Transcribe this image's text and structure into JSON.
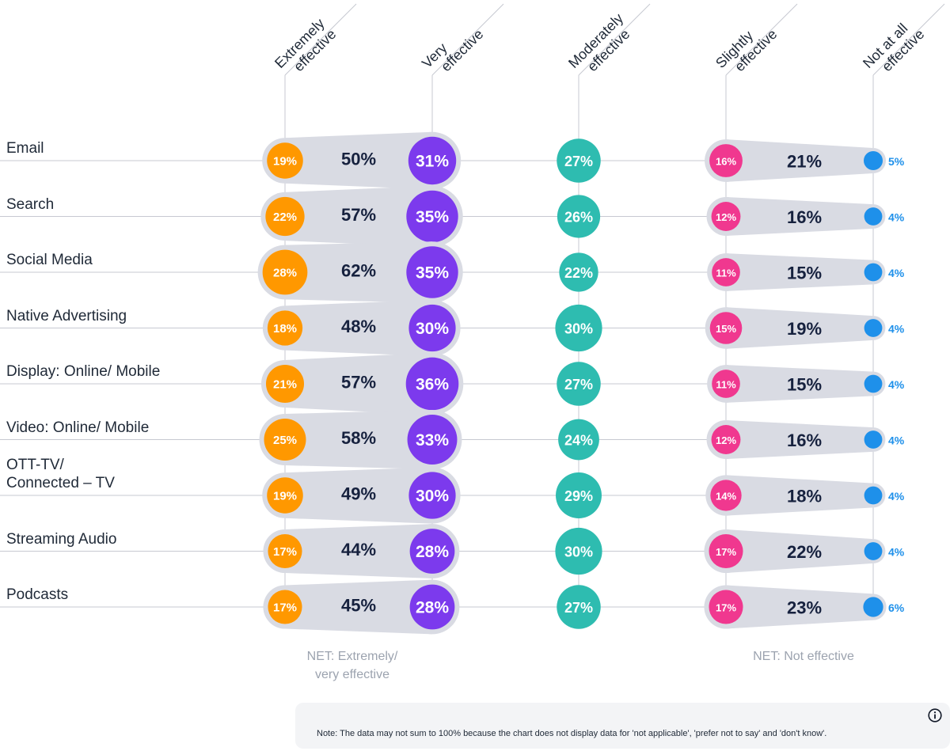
{
  "chart_data": {
    "type": "dot-plot",
    "columns": [
      {
        "key": "extremely",
        "header_lines": [
          "Extremely",
          "effective"
        ],
        "color": "#ff9800"
      },
      {
        "key": "very",
        "header_lines": [
          "Very",
          "effective"
        ],
        "color": "#7c3aed"
      },
      {
        "key": "moderately",
        "header_lines": [
          "Moderately",
          "effective"
        ],
        "color": "#2ebcb0"
      },
      {
        "key": "slightly",
        "header_lines": [
          "Slightly",
          "effective"
        ],
        "color": "#f0388f"
      },
      {
        "key": "not_at_all",
        "header_lines": [
          "Not at all",
          "effective"
        ],
        "color": "#1e90ea"
      }
    ],
    "rows": [
      {
        "label": "Email",
        "extremely": "19%",
        "very": "31%",
        "net_effective": "50%",
        "moderately": "27%",
        "slightly": "16%",
        "net_not": "21%",
        "not_at_all": "5%"
      },
      {
        "label": "Search",
        "extremely": "22%",
        "very": "35%",
        "net_effective": "57%",
        "moderately": "26%",
        "slightly": "12%",
        "net_not": "16%",
        "not_at_all": "4%"
      },
      {
        "label": "Social Media",
        "extremely": "28%",
        "very": "35%",
        "net_effective": "62%",
        "moderately": "22%",
        "slightly": "11%",
        "net_not": "15%",
        "not_at_all": "4%"
      },
      {
        "label": "Native Advertising",
        "extremely": "18%",
        "very": "30%",
        "net_effective": "48%",
        "moderately": "30%",
        "slightly": "15%",
        "net_not": "19%",
        "not_at_all": "4%"
      },
      {
        "label": "Display: Online/ Mobile",
        "extremely": "21%",
        "very": "36%",
        "net_effective": "57%",
        "moderately": "27%",
        "slightly": "11%",
        "net_not": "15%",
        "not_at_all": "4%"
      },
      {
        "label": "Video: Online/ Mobile",
        "extremely": "25%",
        "very": "33%",
        "net_effective": "58%",
        "moderately": "24%",
        "slightly": "12%",
        "net_not": "16%",
        "not_at_all": "4%"
      },
      {
        "label": "OTT-TV/\nConnected – TV",
        "extremely": "19%",
        "very": "30%",
        "net_effective": "49%",
        "moderately": "29%",
        "slightly": "14%",
        "net_not": "18%",
        "not_at_all": "4%"
      },
      {
        "label": "Streaming Audio",
        "extremely": "17%",
        "very": "28%",
        "net_effective": "44%",
        "moderately": "30%",
        "slightly": "17%",
        "net_not": "22%",
        "not_at_all": "4%"
      },
      {
        "label": "Podcasts",
        "extremely": "17%",
        "very": "28%",
        "net_effective": "45%",
        "moderately": "27%",
        "slightly": "17%",
        "net_not": "23%",
        "not_at_all": "6%"
      }
    ],
    "net_labels": {
      "effective": "NET: Extremely/\nvery effective",
      "not_effective": "NET: Not effective"
    }
  },
  "note": "Note: The data may not sum to 100% because the chart does not display data for 'not applicable', 'prefer not to say' and 'don't know'.",
  "colors": {
    "net_band": "#d9dbe3",
    "net_text": "#16213e",
    "axis": "#c7c9d1",
    "label_text": "#1f2937"
  }
}
